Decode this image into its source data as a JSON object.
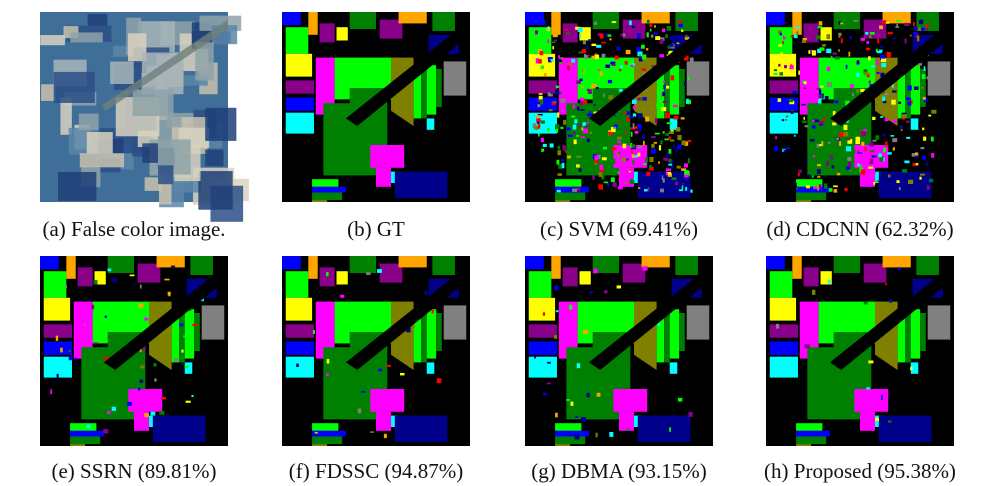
{
  "figure": {
    "panels": [
      {
        "caption": "(a) False color image."
      },
      {
        "caption": "(b) GT"
      },
      {
        "caption": "(c) SVM (69.41%)"
      },
      {
        "caption": "(d) CDCNN (62.32%)"
      },
      {
        "caption": "(e) SSRN (89.81%)"
      },
      {
        "caption": "(f) FDSSC (94.87%)"
      },
      {
        "caption": "(g) DBMA (93.15%)"
      },
      {
        "caption": "(h) Proposed (95.38%)"
      }
    ]
  }
}
